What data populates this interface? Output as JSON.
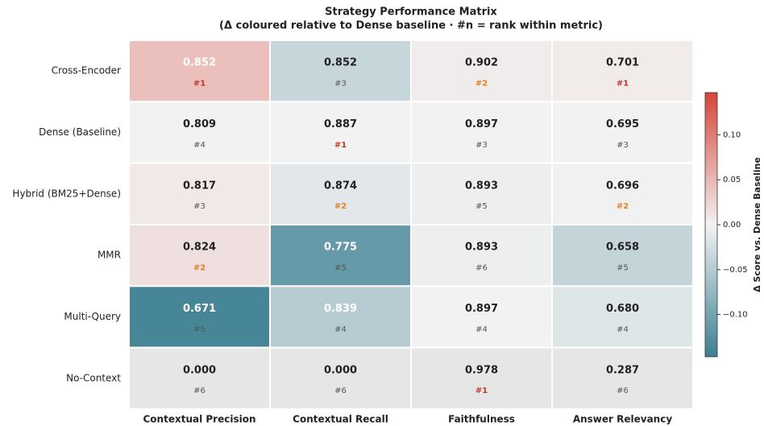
{
  "chart_data": {
    "type": "heatmap",
    "title": "Strategy Performance Matrix",
    "subtitle": "(Δ coloured relative to Dense baseline · #n = rank within metric)",
    "rows": [
      "Cross-Encoder",
      "Dense (Baseline)",
      "Hybrid (BM25+Dense)",
      "MMR",
      "Multi-Query",
      "No-Context"
    ],
    "columns": [
      "Contextual Precision",
      "Contextual Recall",
      "Faithfulness",
      "Answer Relevancy"
    ],
    "values": [
      [
        0.852,
        0.852,
        0.902,
        0.701
      ],
      [
        0.809,
        0.887,
        0.897,
        0.695
      ],
      [
        0.817,
        0.874,
        0.893,
        0.696
      ],
      [
        0.824,
        0.775,
        0.893,
        0.658
      ],
      [
        0.671,
        0.839,
        0.897,
        0.68
      ],
      [
        0.0,
        0.0,
        0.978,
        0.287
      ]
    ],
    "value_labels": [
      [
        "0.852",
        "0.852",
        "0.902",
        "0.701"
      ],
      [
        "0.809",
        "0.887",
        "0.897",
        "0.695"
      ],
      [
        "0.817",
        "0.874",
        "0.893",
        "0.696"
      ],
      [
        "0.824",
        "0.775",
        "0.893",
        "0.658"
      ],
      [
        "0.671",
        "0.839",
        "0.897",
        "0.680"
      ],
      [
        "0.000",
        "0.000",
        "0.978",
        "0.287"
      ]
    ],
    "ranks": [
      [
        1,
        3,
        2,
        1
      ],
      [
        4,
        1,
        3,
        3
      ],
      [
        3,
        2,
        5,
        2
      ],
      [
        2,
        5,
        6,
        5
      ],
      [
        5,
        4,
        4,
        4
      ],
      [
        6,
        6,
        1,
        6
      ]
    ],
    "rank_labels": [
      [
        "#1",
        "#3",
        "#2",
        "#1"
      ],
      [
        "#4",
        "#1",
        "#3",
        "#3"
      ],
      [
        "#3",
        "#2",
        "#5",
        "#2"
      ],
      [
        "#2",
        "#5",
        "#6",
        "#5"
      ],
      [
        "#5",
        "#4",
        "#4",
        "#4"
      ],
      [
        "#6",
        "#6",
        "#1",
        "#6"
      ]
    ],
    "rank_colors": {
      "1": "#c0392b",
      "2": "#e67e22",
      "other": "#555555"
    },
    "baseline_row": 1,
    "excluded_rows": [
      5
    ],
    "excluded_color": "#e6e6e6",
    "colors": {
      "low": "#3b7f91",
      "mid": "#f2f2f2",
      "high": "#d6453a"
    },
    "colorbar_label": "Δ Score vs. Dense Baseline",
    "clim": [
      -0.147,
      0.147
    ],
    "cticks": [
      {
        "value": -0.1,
        "label": "−0.10"
      },
      {
        "value": -0.05,
        "label": "−0.05"
      },
      {
        "value": 0,
        "label": "0.00"
      },
      {
        "value": 0.05,
        "label": "0.05"
      },
      {
        "value": 0.1,
        "label": "0.10"
      }
    ]
  }
}
